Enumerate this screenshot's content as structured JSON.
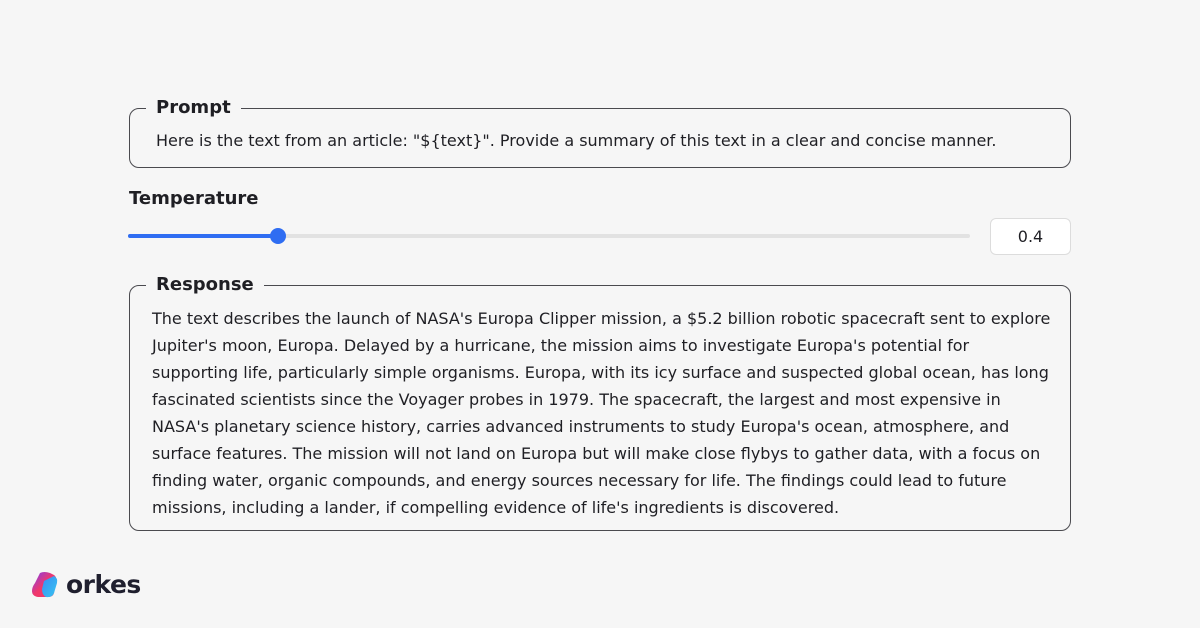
{
  "prompt": {
    "label": "Prompt",
    "text": "Here is the text from an article: \"${text}\". Provide a summary of this text in a clear and concise manner."
  },
  "temperature": {
    "label": "Temperature",
    "value": "0.4",
    "accent_color": "#2f6df2"
  },
  "response": {
    "label": "Response",
    "text": "The text describes the launch of NASA's Europa Clipper mission, a $5.2 billion robotic spacecraft sent to explore Jupiter's moon, Europa. Delayed by a hurricane, the mission aims to investigate Europa's potential for supporting life, particularly simple organisms. Europa, with its icy surface and suspected global ocean, has long fascinated scientists since the Voyager probes in 1979. The spacecraft, the largest and most expensive in NASA's planetary science history, carries advanced instruments to study Europa's ocean, atmosphere, and surface features. The mission will not land on Europa but will make close flybys to gather data, with a focus on finding water, organic compounds, and energy sources necessary for life. The findings could lead to future missions, including a lander, if compelling evidence of life's ingredients is discovered."
  },
  "brand": {
    "name": "orkes",
    "icon": "orkes-logo-icon"
  }
}
